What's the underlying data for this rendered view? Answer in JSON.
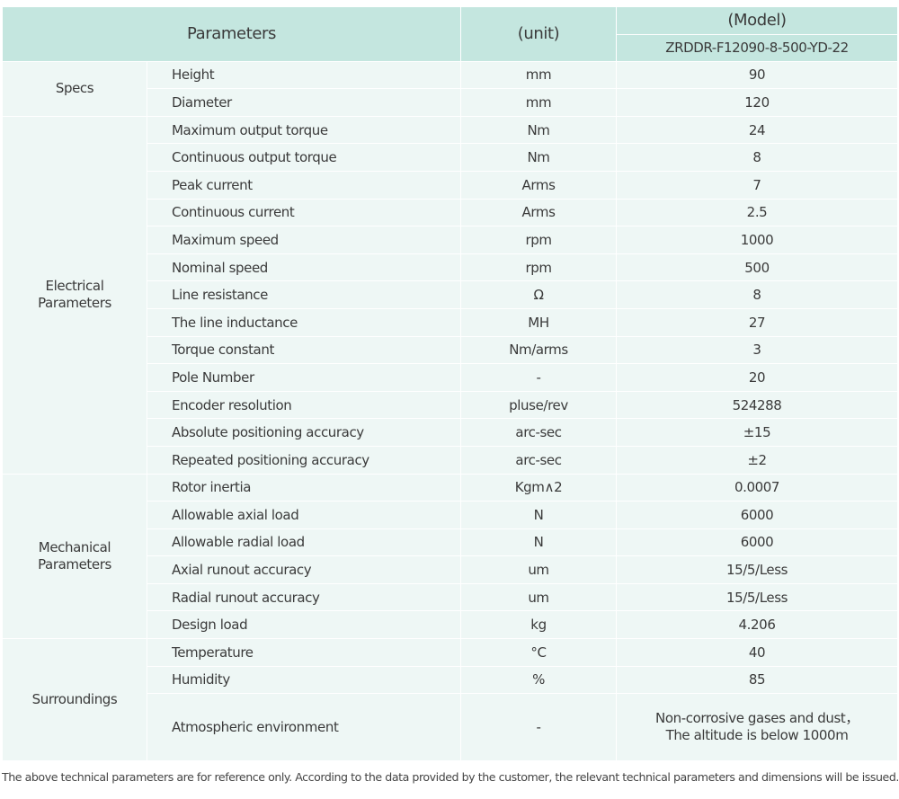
{
  "header": {
    "parameters": "Parameters",
    "unit": "(unit)",
    "model": "(Model)",
    "model_name": "ZRDDR-F12090-8-500-YD-22"
  },
  "groups": [
    {
      "label": "Specs",
      "rows": [
        [
          "Height",
          "mm",
          "90"
        ],
        [
          "Diameter",
          "mm",
          "120"
        ]
      ]
    },
    {
      "label": "Electrical Parameters",
      "rows": [
        [
          "Maximum output torque",
          "Nm",
          "24"
        ],
        [
          "Continuous output torque",
          "Nm",
          "8"
        ],
        [
          "Peak current",
          "Arms",
          "7"
        ],
        [
          "Continuous current",
          "Arms",
          "2.5"
        ],
        [
          "Maximum speed",
          "rpm",
          "1000"
        ],
        [
          "Nominal speed",
          "rpm",
          "500"
        ],
        [
          "Line resistance",
          "Ω",
          "8"
        ],
        [
          "The line inductance",
          "MH",
          "27"
        ],
        [
          "Torque constant",
          "Nm/arms",
          "3"
        ],
        [
          "Pole Number",
          "-",
          "20"
        ],
        [
          "Encoder resolution",
          "pluse/rev",
          "524288"
        ],
        [
          "Absolute positioning accuracy",
          "arc-sec",
          "±15"
        ],
        [
          "Repeated positioning accuracy",
          "arc-sec",
          "±2"
        ]
      ]
    },
    {
      "label": "Mechanical Parameters",
      "rows": [
        [
          "Rotor inertia",
          "Kgm∧2",
          "0.0007"
        ],
        [
          "Allowable axial load",
          "N",
          "6000"
        ],
        [
          "Allowable radial load",
          "N",
          "6000"
        ],
        [
          "Axial runout accuracy",
          "um",
          "15/5/Less"
        ],
        [
          "Radial runout accuracy",
          "um",
          "15/5/Less"
        ],
        [
          "Design load",
          "kg",
          "4.206"
        ]
      ]
    },
    {
      "label": "Surroundings",
      "rows": [
        [
          "Temperature",
          "°C",
          "40"
        ],
        [
          "Humidity",
          "%",
          "85"
        ],
        [
          "Atmospheric environment",
          "-",
          [
            "Non-corrosive gases and dust，",
            "The altitude is below 1000m"
          ]
        ]
      ]
    }
  ],
  "footnote": "The above technical parameters are for reference only. According to the data provided by the customer, the relevant technical parameters and dimensions will be issued."
}
